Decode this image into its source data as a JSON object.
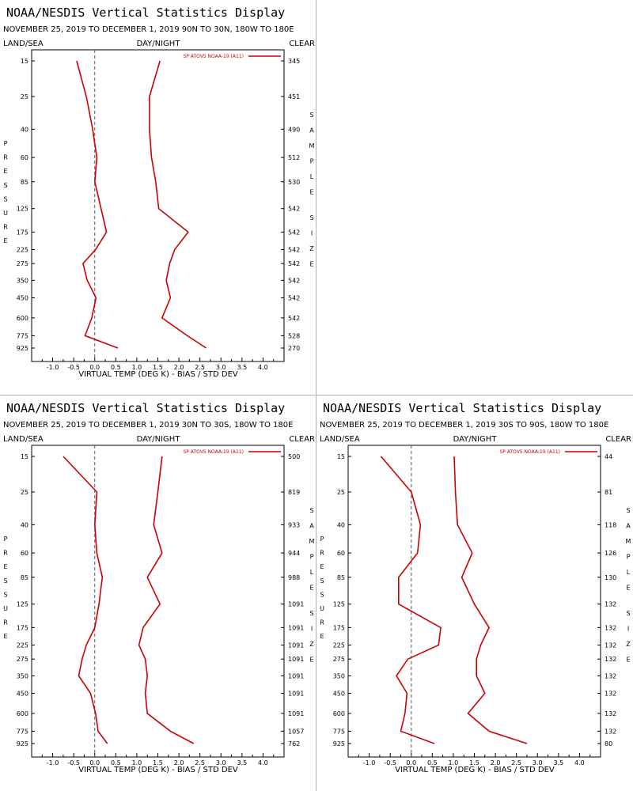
{
  "panels": [
    {
      "title": "NOAA/NESDIS Vertical Statistics Display",
      "subtitle": "NOVEMBER 25, 2019 TO DECEMBER 1, 2019 90N TO 30N, 180W TO 180E",
      "left_header": "LAND/SEA",
      "center_header": "DAY/NIGHT",
      "right_header": "CLEAR",
      "left_axis_vertical": "PRESSURE",
      "right_axis_vertical": "SAMPLE SIZE",
      "legend": "SP ATOVS NOAA-19 (A11)"
    },
    {
      "title": "NOAA/NESDIS Vertical Statistics Display",
      "subtitle": "NOVEMBER 25, 2019 TO DECEMBER 1, 2019 30N TO 30S, 180W TO 180E",
      "left_header": "LAND/SEA",
      "center_header": "DAY/NIGHT",
      "right_header": "CLEAR",
      "left_axis_vertical": "PRESSURE",
      "right_axis_vertical": "SAMPLE SIZE",
      "legend": "SP ATOVS NOAA-19 (A11)"
    },
    {
      "title": "NOAA/NESDIS Vertical Statistics Display",
      "subtitle": "NOVEMBER 25, 2019 TO DECEMBER 1, 2019 30S TO 90S, 180W TO 180E",
      "left_header": "LAND/SEA",
      "center_header": "DAY/NIGHT",
      "right_header": "CLEAR",
      "left_axis_vertical": "PRESSURE",
      "right_axis_vertical": "SAMPLE SIZE",
      "legend": "SP ATOVS NOAA-19 (A11)"
    }
  ],
  "chart_data": [
    {
      "type": "line",
      "xlabel": "VIRTUAL TEMP (DEG K) - BIAS / STD DEV",
      "ylabel": "PRESSURE",
      "xlim": [
        -1.5,
        4.5
      ],
      "x_ticks": [
        "-1.0",
        "-0.5",
        "0.0",
        "0.5",
        "1.0",
        "1.5",
        "2.0",
        "2.5",
        "3.0",
        "3.5",
        "4.0"
      ],
      "pressure_levels": [
        "15",
        "25",
        "40",
        "60",
        "85",
        "125",
        "175",
        "225",
        "275",
        "350",
        "450",
        "600",
        "775",
        "925"
      ],
      "sample_size": [
        "345",
        "451",
        "490",
        "512",
        "530",
        "542",
        "542",
        "542",
        "542",
        "542",
        "542",
        "542",
        "528",
        "270"
      ],
      "series": [
        {
          "name": "SP ATOVS NOAA-19 (A11)",
          "color": "#cc0000",
          "kind": "bias",
          "values": [
            -0.43,
            -0.2,
            -0.05,
            0.05,
            0.0,
            0.15,
            0.28,
            0.02,
            -0.28,
            -0.18,
            0.03,
            -0.07,
            -0.23,
            0.55
          ]
        },
        {
          "name": "SP ATOVS NOAA-19 (A11)",
          "color": "#cc0000",
          "kind": "std_dev",
          "values": [
            1.55,
            1.3,
            1.3,
            1.35,
            1.45,
            1.52,
            2.22,
            1.9,
            1.78,
            1.7,
            1.8,
            1.6,
            2.2,
            2.65
          ]
        }
      ]
    },
    {
      "type": "line",
      "xlabel": "VIRTUAL TEMP (DEG K) - BIAS / STD DEV",
      "ylabel": "PRESSURE",
      "xlim": [
        -1.5,
        4.5
      ],
      "x_ticks": [
        "-1.0",
        "-0.5",
        "0.0",
        "0.5",
        "1.0",
        "1.5",
        "2.0",
        "2.5",
        "3.0",
        "3.5",
        "4.0"
      ],
      "pressure_levels": [
        "15",
        "25",
        "40",
        "60",
        "85",
        "125",
        "175",
        "225",
        "275",
        "350",
        "450",
        "600",
        "775",
        "925"
      ],
      "sample_size": [
        "500",
        "819",
        "933",
        "944",
        "988",
        "1091",
        "1091",
        "1091",
        "1091",
        "1091",
        "1091",
        "1091",
        "1057",
        "762"
      ],
      "series": [
        {
          "name": "SP ATOVS NOAA-19 (A11)",
          "color": "#cc0000",
          "kind": "bias",
          "values": [
            -0.75,
            0.05,
            0.0,
            0.05,
            0.18,
            0.1,
            0.0,
            -0.2,
            -0.3,
            -0.38,
            -0.1,
            0.02,
            0.08,
            0.3
          ]
        },
        {
          "name": "SP ATOVS NOAA-19 (A11)",
          "color": "#cc0000",
          "kind": "std_dev",
          "values": [
            1.6,
            1.5,
            1.4,
            1.6,
            1.25,
            1.55,
            1.15,
            1.05,
            1.2,
            1.25,
            1.2,
            1.25,
            1.8,
            2.35
          ]
        }
      ]
    },
    {
      "type": "line",
      "xlabel": "VIRTUAL TEMP (DEG K) - BIAS / STD DEV",
      "ylabel": "PRESSURE",
      "xlim": [
        -1.5,
        4.5
      ],
      "x_ticks": [
        "-1.0",
        "-0.5",
        "0.0",
        "0.5",
        "1.0",
        "1.5",
        "2.0",
        "2.5",
        "3.0",
        "3.5",
        "4.0"
      ],
      "pressure_levels": [
        "15",
        "25",
        "40",
        "60",
        "85",
        "125",
        "175",
        "225",
        "275",
        "350",
        "450",
        "600",
        "775",
        "925"
      ],
      "sample_size": [
        "44",
        "81",
        "118",
        "126",
        "130",
        "132",
        "132",
        "132",
        "132",
        "132",
        "132",
        "132",
        "132",
        "80"
      ],
      "series": [
        {
          "name": "SP ATOVS NOAA-19 (A11)",
          "color": "#cc0000",
          "kind": "bias",
          "values": [
            -0.72,
            0.0,
            0.22,
            0.15,
            -0.3,
            -0.3,
            0.7,
            0.65,
            -0.08,
            -0.35,
            -0.1,
            -0.15,
            -0.25,
            0.55
          ]
        },
        {
          "name": "SP ATOVS NOAA-19 (A11)",
          "color": "#cc0000",
          "kind": "std_dev",
          "values": [
            1.02,
            1.05,
            1.1,
            1.45,
            1.2,
            1.5,
            1.85,
            1.65,
            1.55,
            1.55,
            1.75,
            1.35,
            1.85,
            2.75
          ]
        }
      ]
    }
  ]
}
